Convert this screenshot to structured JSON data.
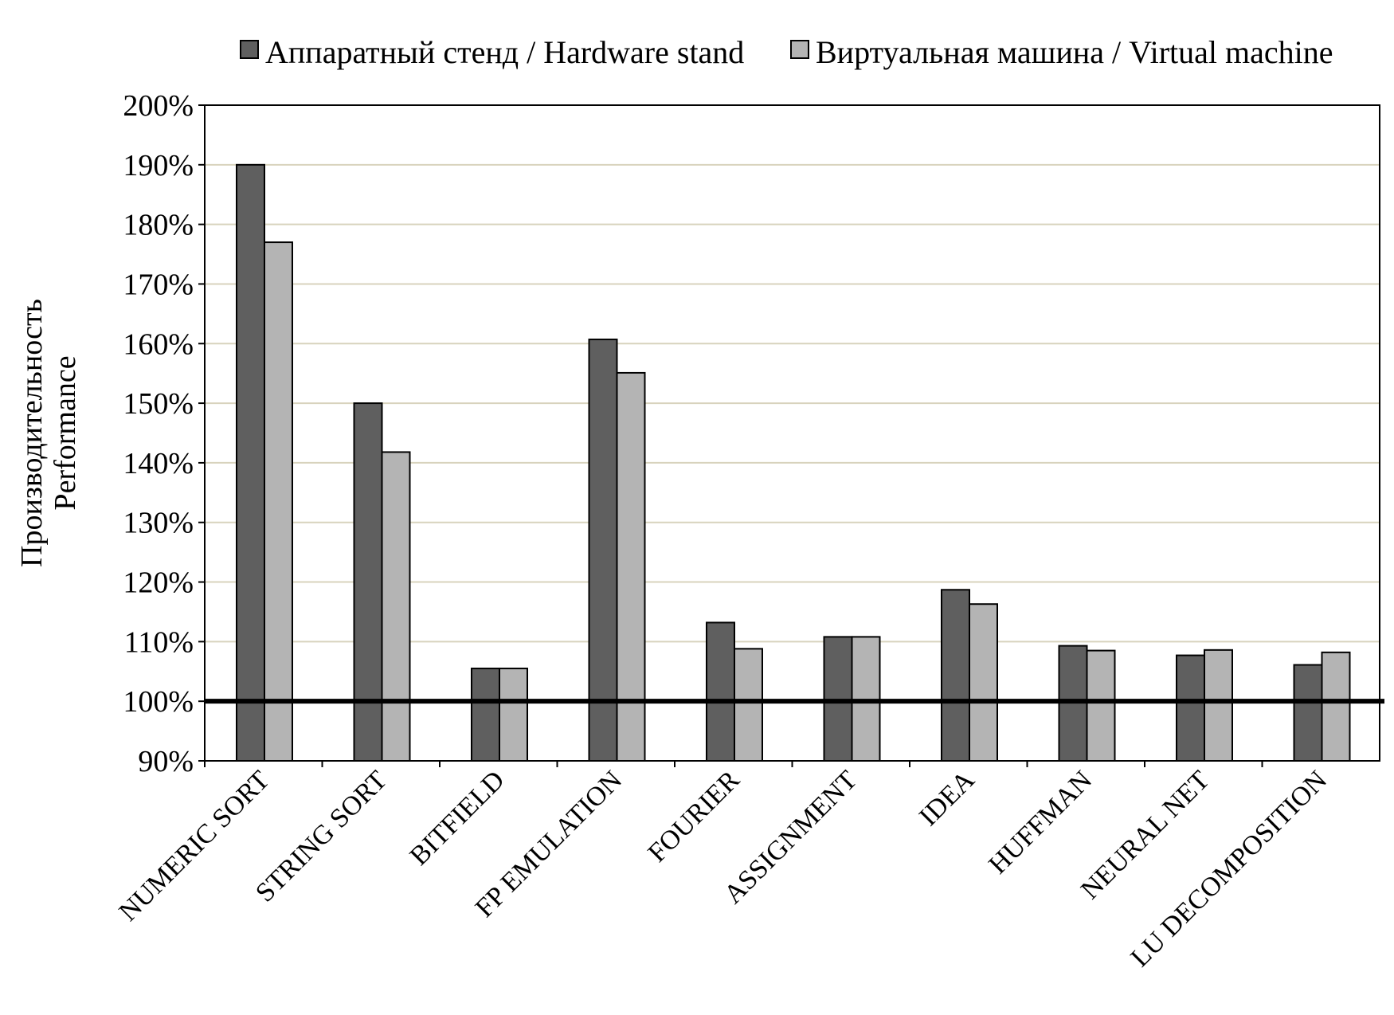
{
  "chart_data": {
    "type": "bar",
    "title": "",
    "ylabel": [
      "Производительность",
      "Performance"
    ],
    "xlabel": "",
    "ylim": [
      0.9,
      2.0
    ],
    "yticks": [
      "90%",
      "100%",
      "110%",
      "120%",
      "130%",
      "140%",
      "150%",
      "160%",
      "170%",
      "180%",
      "190%",
      "200%"
    ],
    "baseline": 1.0,
    "grid": true,
    "legend_position": "top",
    "categories": [
      "NUMERIC SORT",
      "STRING SORT",
      "BITFIELD",
      "FP EMULATION",
      "FOURIER",
      "ASSIGNMENT",
      "IDEA",
      "HUFFMAN",
      "NEURAL NET",
      "LU DECOMPOSITION"
    ],
    "series": [
      {
        "name": "Аппаратный стенд / Hardware stand",
        "color": "#5f5f5f",
        "values": [
          1.9,
          1.5,
          1.055,
          1.607,
          1.132,
          1.108,
          1.187,
          1.093,
          1.077,
          1.061
        ]
      },
      {
        "name": "Виртуальная машина / Virtual machine",
        "color": "#b4b4b4",
        "values": [
          1.77,
          1.418,
          1.055,
          1.551,
          1.088,
          1.108,
          1.163,
          1.085,
          1.086,
          1.082
        ]
      }
    ],
    "colors": {
      "grid": "#d8d3bd",
      "axis": "#000000",
      "background": "#ffffff"
    }
  }
}
